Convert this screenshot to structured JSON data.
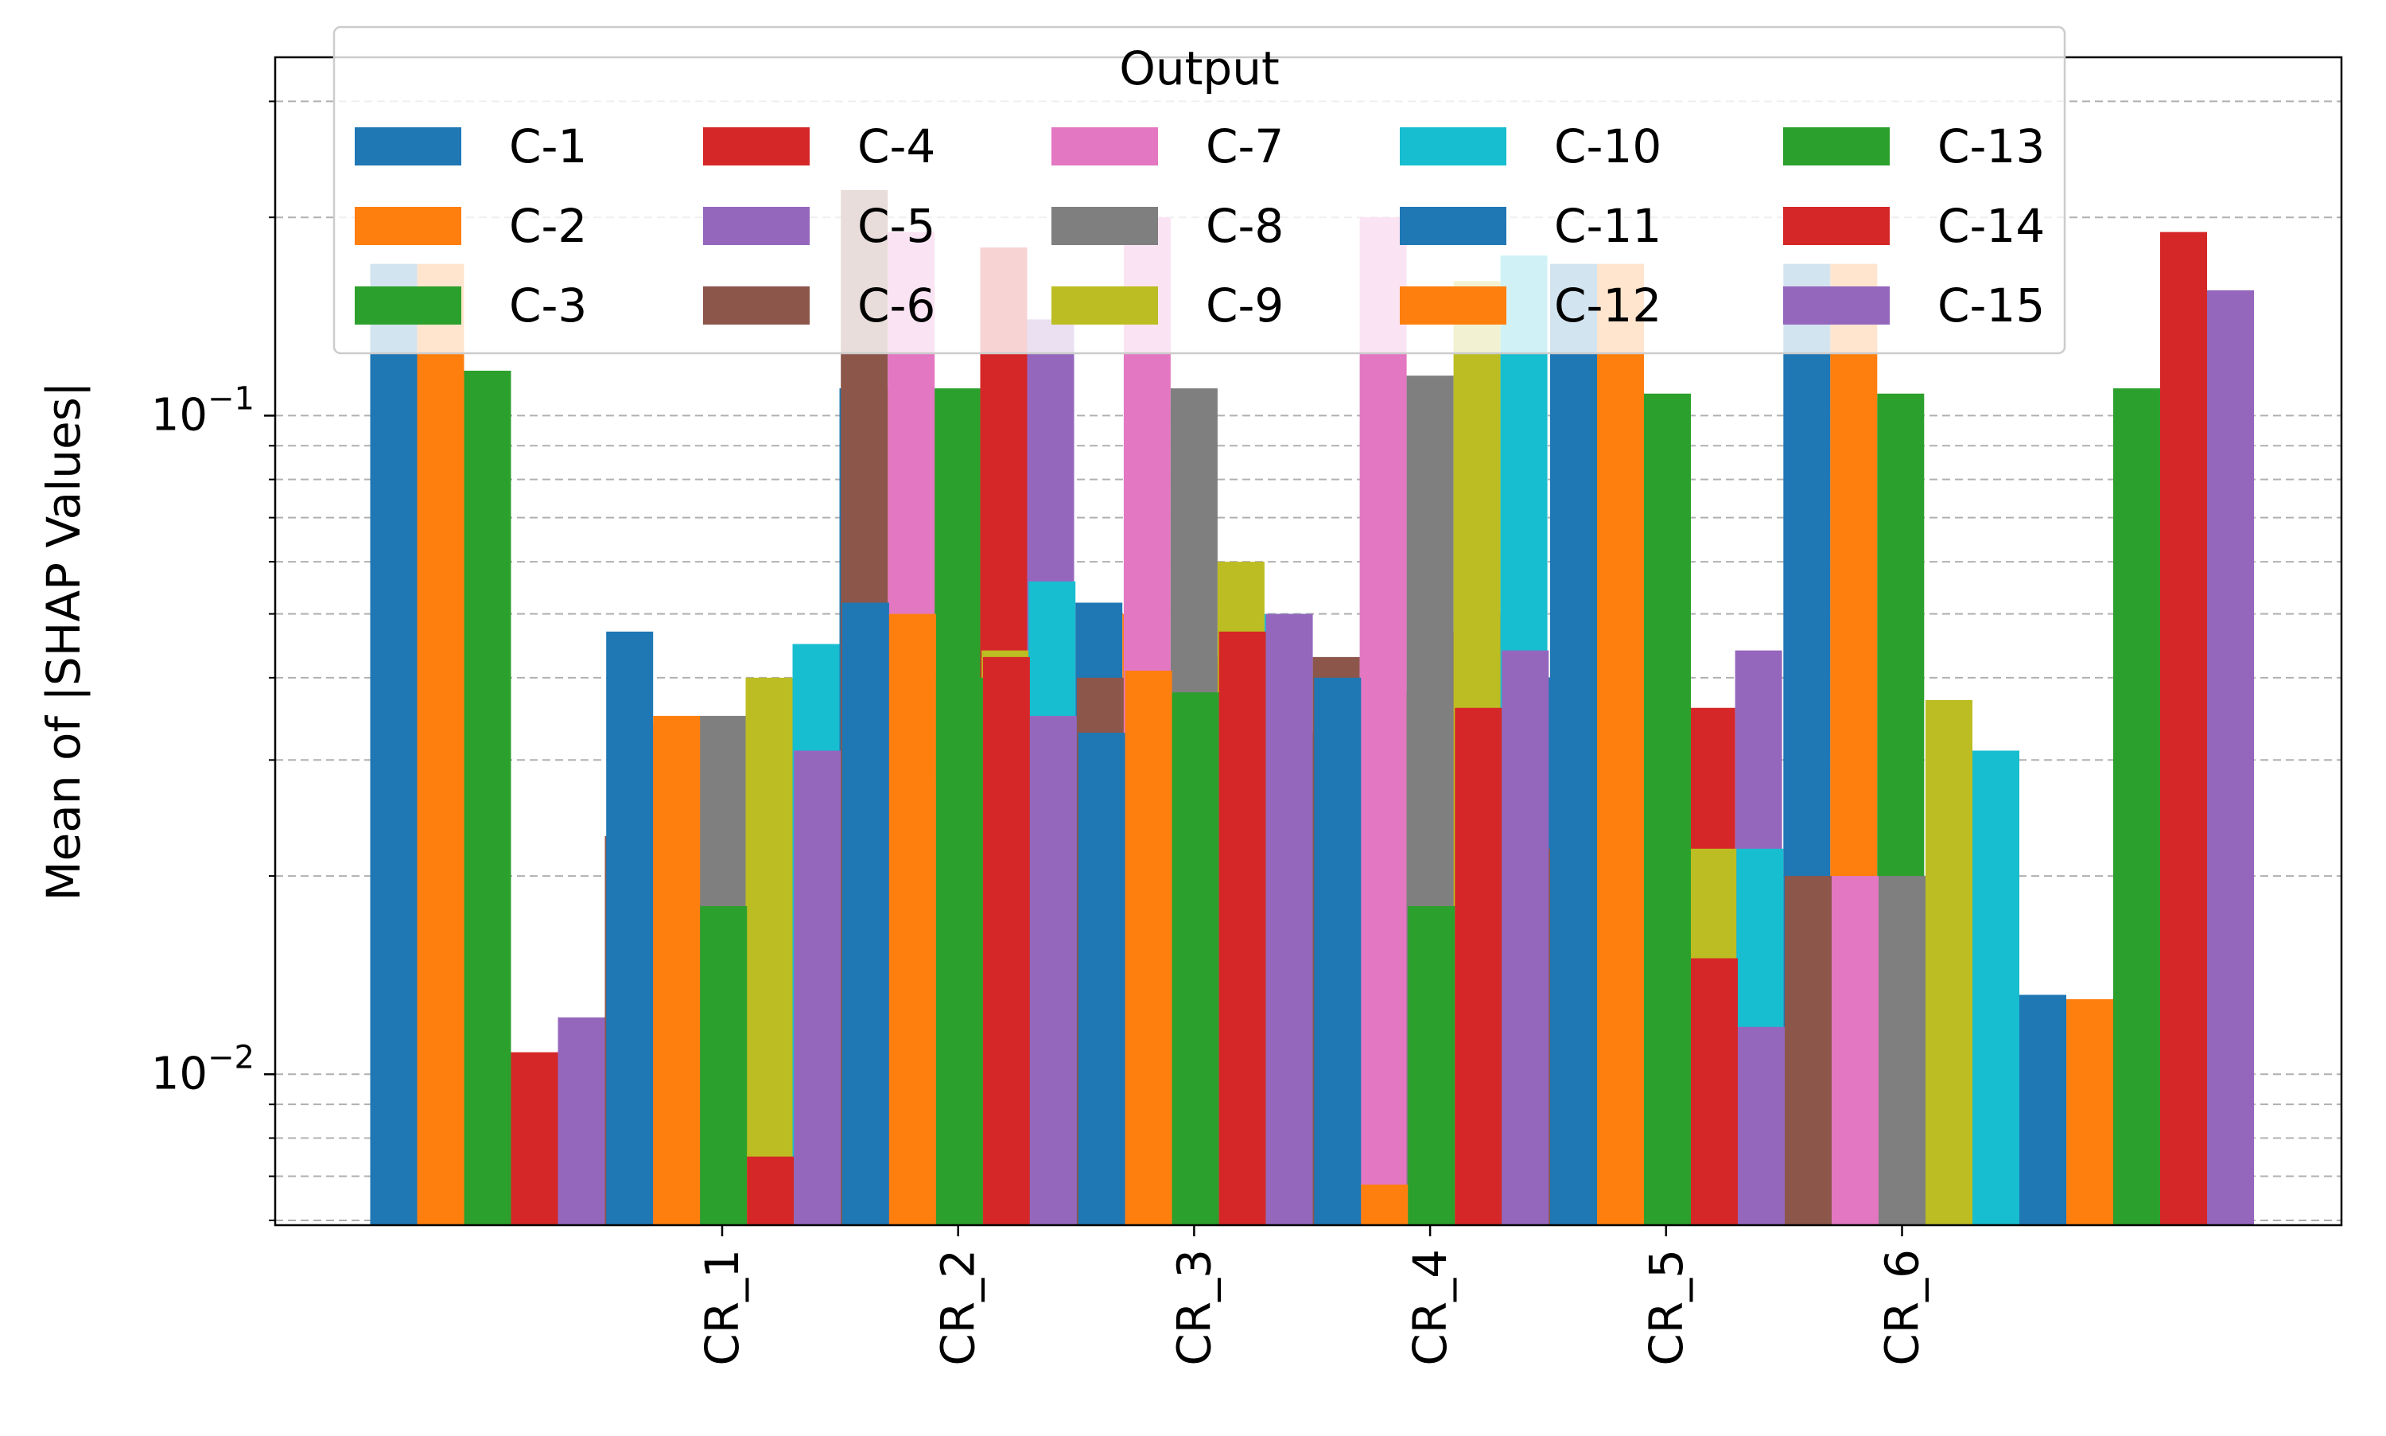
{
  "chart_data": {
    "type": "bar",
    "ylabel": "Mean of |SHAP Values|",
    "xlabel": "",
    "yscale": "log",
    "ylim": [
      0.0059,
      0.35
    ],
    "y_major_ticks": [
      0.01,
      0.1
    ],
    "y_tick_labels": [
      {
        "mantissa": "10",
        "exponent": "−2",
        "value": 0.01
      },
      {
        "mantissa": "10",
        "exponent": "−1",
        "value": 0.1
      }
    ],
    "grid": "y-major-and-minor-dashed",
    "categories": [
      "CR_1",
      "CR_2",
      "CR_3",
      "CR_4",
      "CR_5",
      "CR_6"
    ],
    "legend": {
      "title": "Output",
      "placement": "top-center",
      "columns": 5
    },
    "colors": {
      "C-1": "#1f77b4",
      "C-2": "#ff7f0e",
      "C-3": "#2ca02c",
      "C-4": "#d62728",
      "C-5": "#9467bd",
      "C-6": "#8c564b",
      "C-7": "#e377c2",
      "C-8": "#7f7f7f",
      "C-9": "#bcbd22",
      "C-10": "#17becf",
      "C-11": "#1f77b4",
      "C-12": "#ff7f0e",
      "C-13": "#2ca02c",
      "C-14": "#d62728",
      "C-15": "#9467bd"
    },
    "series": [
      {
        "name": "C-1",
        "values": [
          0.17,
          0.047,
          0.052,
          0.033,
          0.04,
          0.17
        ]
      },
      {
        "name": "C-2",
        "values": [
          0.17,
          0.035,
          0.05,
          0.041,
          0.0068,
          0.17
        ]
      },
      {
        "name": "C-3",
        "values": [
          0.117,
          0.018,
          0.04,
          0.038,
          0.018,
          0.108
        ]
      },
      {
        "name": "C-4",
        "values": [
          0.0108,
          0.0075,
          0.043,
          0.047,
          0.036,
          0.015
        ]
      },
      {
        "name": "C-5",
        "values": [
          0.0122,
          0.031,
          0.035,
          0.05,
          0.044,
          0.0118
        ]
      },
      {
        "name": "C-6",
        "values": [
          0.023,
          0.22,
          0.04,
          0.043,
          0.022,
          0.02
        ]
      },
      {
        "name": "C-7",
        "values": [
          0.034,
          0.19,
          0.2,
          0.2,
          0.037,
          0.02
        ]
      },
      {
        "name": "C-8",
        "values": [
          0.035,
          0.028,
          0.11,
          0.115,
          0.023,
          0.02
        ]
      },
      {
        "name": "C-9",
        "values": [
          0.04,
          0.044,
          0.06,
          0.16,
          0.022,
          0.037
        ]
      },
      {
        "name": "C-10",
        "values": [
          0.045,
          0.056,
          0.05,
          0.175,
          0.022,
          0.031
        ]
      },
      {
        "name": "C-11",
        "values": [
          0.11,
          0.052,
          0.033,
          0.04,
          0.17,
          0.0132
        ]
      },
      {
        "name": "C-12",
        "values": [
          0.11,
          0.05,
          0.04,
          0.041,
          0.17,
          0.013
        ]
      },
      {
        "name": "C-13",
        "values": [
          0.11,
          0.04,
          0.038,
          0.04,
          0.108,
          0.11
        ]
      },
      {
        "name": "C-14",
        "values": [
          0.18,
          0.043,
          0.047,
          0.036,
          0.015,
          0.19
        ]
      },
      {
        "name": "C-15",
        "values": [
          0.14,
          0.035,
          0.05,
          0.044,
          0.0118,
          0.155
        ]
      }
    ]
  }
}
